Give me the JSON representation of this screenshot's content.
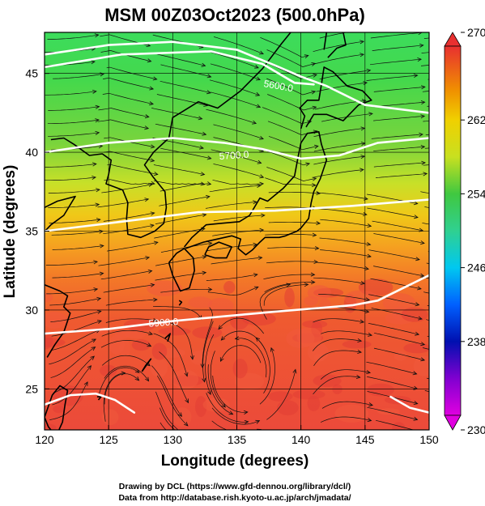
{
  "title": "MSM 00Z03Oct2023 (500.0hPa)",
  "xlabel": "Longitude (degrees)",
  "ylabel": "Latitude  (degrees)",
  "xticks": [
    "120",
    "125",
    "130",
    "135",
    "140",
    "145",
    "150"
  ],
  "yticks": [
    "25",
    "30",
    "35",
    "40",
    "45"
  ],
  "colorbar": {
    "ticks": [
      "270",
      "262",
      "254",
      "246",
      "238",
      "230"
    ],
    "min": 230,
    "max": 270,
    "colors": [
      "#e000e0",
      "#0000c0",
      "#0060ff",
      "#00c8f0",
      "#30d090",
      "#40c840",
      "#c8e020",
      "#f0d000",
      "#f09000",
      "#f06020",
      "#e83030"
    ]
  },
  "contours": [
    {
      "label": "5600.0",
      "lat_anchor": 44.5
    },
    {
      "label": "5700.0",
      "lat_anchor": 39.5
    },
    {
      "label": "5900.0",
      "lat_anchor": 28.3
    }
  ],
  "credits": [
    "Drawing by DCL (https://www.gfd-dennou.org/library/dcl/)",
    "Data from http://database.rish.kyoto-u.ac.jp/arch/jmadata/"
  ],
  "chart_data": {
    "type": "heatmap",
    "title": "MSM 00Z03Oct2023 (500.0hPa)",
    "xlabel": "Longitude (degrees)",
    "ylabel": "Latitude  (degrees)",
    "xlim": [
      120,
      150
    ],
    "ylim": [
      22.4,
      47.6
    ],
    "shaded_field_range": [
      230,
      270
    ],
    "approx_shade_by_latitude": [
      {
        "lat": 46,
        "value": 254
      },
      {
        "lat": 42,
        "value": 256
      },
      {
        "lat": 38,
        "value": 260
      },
      {
        "lat": 35,
        "value": 263
      },
      {
        "lat": 32,
        "value": 266
      },
      {
        "lat": 28,
        "value": 268
      },
      {
        "lat": 24,
        "value": 268
      }
    ],
    "contour_levels": [
      5600,
      5700,
      5800,
      5900
    ]
  }
}
